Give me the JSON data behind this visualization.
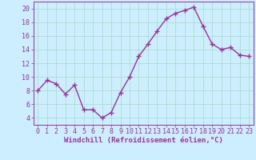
{
  "x": [
    0,
    1,
    2,
    3,
    4,
    5,
    6,
    7,
    8,
    9,
    10,
    11,
    12,
    13,
    14,
    15,
    16,
    17,
    18,
    19,
    20,
    21,
    22,
    23
  ],
  "y": [
    8,
    9.5,
    9,
    7.5,
    8.8,
    5.2,
    5.2,
    4.0,
    4.8,
    7.7,
    10.0,
    13.0,
    14.8,
    16.7,
    18.5,
    19.3,
    19.7,
    20.2,
    17.4,
    14.8,
    14.0,
    14.3,
    13.2,
    13.0
  ],
  "line_color": "#993399",
  "marker": "s",
  "markersize": 2,
  "linewidth": 1.0,
  "bg_color": "#cceeff",
  "grid_color": "#aaddcc",
  "xlabel": "Windchill (Refroidissement éolien,°C)",
  "ylabel": "",
  "xlim": [
    -0.5,
    23.5
  ],
  "ylim": [
    3,
    21
  ],
  "yticks": [
    4,
    6,
    8,
    10,
    12,
    14,
    16,
    18,
    20
  ],
  "xticks": [
    0,
    1,
    2,
    3,
    4,
    5,
    6,
    7,
    8,
    9,
    10,
    11,
    12,
    13,
    14,
    15,
    16,
    17,
    18,
    19,
    20,
    21,
    22,
    23
  ],
  "xlabel_fontsize": 6.5,
  "tick_fontsize": 6,
  "tick_color": "#993399",
  "axis_color": "#993399"
}
